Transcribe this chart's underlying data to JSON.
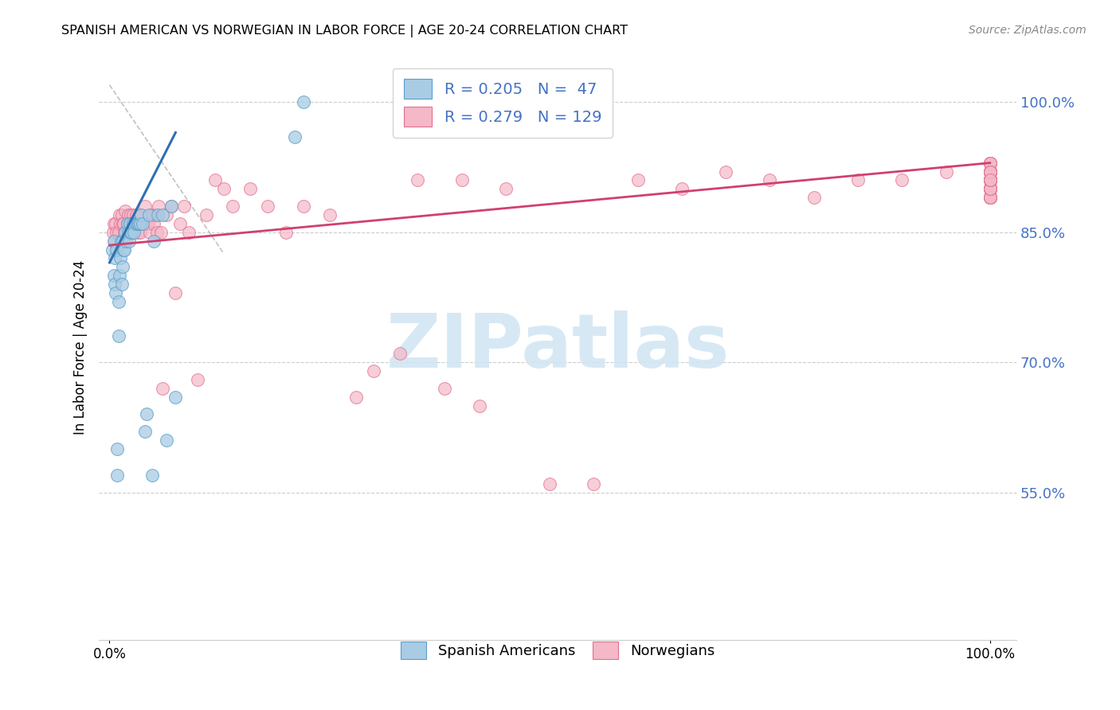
{
  "title": "SPANISH AMERICAN VS NORWEGIAN IN LABOR FORCE | AGE 20-24 CORRELATION CHART",
  "source": "Source: ZipAtlas.com",
  "ylabel": "In Labor Force | Age 20-24",
  "ytick_labels": [
    "100.0%",
    "85.0%",
    "70.0%",
    "55.0%"
  ],
  "ytick_values": [
    1.0,
    0.85,
    0.7,
    0.55
  ],
  "legend_r_blue": "R = 0.205",
  "legend_n_blue": "N =  47",
  "legend_r_pink": "R = 0.279",
  "legend_n_pink": "N = 129",
  "blue_color": "#a8cce4",
  "blue_edge_color": "#5b9ec9",
  "pink_color": "#f4b8c8",
  "pink_edge_color": "#e07090",
  "blue_line_color": "#3070b0",
  "pink_line_color": "#d04070",
  "blue_scatter_x": [
    0.003,
    0.005,
    0.005,
    0.006,
    0.006,
    0.007,
    0.008,
    0.009,
    0.009,
    0.01,
    0.01,
    0.011,
    0.012,
    0.013,
    0.014,
    0.015,
    0.015,
    0.016,
    0.017,
    0.018,
    0.019,
    0.02,
    0.021,
    0.022,
    0.023,
    0.024,
    0.025,
    0.027,
    0.028,
    0.03,
    0.032,
    0.033,
    0.035,
    0.036,
    0.038,
    0.04,
    0.042,
    0.045,
    0.048,
    0.05,
    0.055,
    0.06,
    0.065,
    0.07,
    0.075,
    0.21,
    0.22
  ],
  "blue_scatter_y": [
    0.83,
    0.84,
    0.8,
    0.82,
    0.79,
    0.78,
    0.83,
    0.6,
    0.57,
    0.77,
    0.73,
    0.8,
    0.82,
    0.84,
    0.79,
    0.81,
    0.84,
    0.83,
    0.83,
    0.85,
    0.84,
    0.86,
    0.85,
    0.84,
    0.86,
    0.85,
    0.85,
    0.86,
    0.85,
    0.86,
    0.86,
    0.86,
    0.86,
    0.87,
    0.86,
    0.62,
    0.64,
    0.87,
    0.57,
    0.84,
    0.87,
    0.87,
    0.61,
    0.88,
    0.66,
    0.96,
    1.0
  ],
  "pink_scatter_x": [
    0.004,
    0.005,
    0.006,
    0.007,
    0.008,
    0.009,
    0.01,
    0.011,
    0.012,
    0.013,
    0.014,
    0.015,
    0.016,
    0.017,
    0.018,
    0.019,
    0.02,
    0.021,
    0.022,
    0.023,
    0.024,
    0.025,
    0.026,
    0.027,
    0.028,
    0.03,
    0.032,
    0.034,
    0.035,
    0.036,
    0.038,
    0.04,
    0.042,
    0.044,
    0.046,
    0.048,
    0.05,
    0.052,
    0.054,
    0.056,
    0.058,
    0.06,
    0.065,
    0.07,
    0.075,
    0.08,
    0.085,
    0.09,
    0.1,
    0.11,
    0.12,
    0.13,
    0.14,
    0.16,
    0.18,
    0.2,
    0.22,
    0.25,
    0.28,
    0.3,
    0.33,
    0.35,
    0.38,
    0.4,
    0.42,
    0.45,
    0.5,
    0.55,
    0.6,
    0.65,
    0.7,
    0.75,
    0.8,
    0.85,
    0.9,
    0.95,
    1.0,
    1.0,
    1.0,
    1.0,
    1.0,
    1.0,
    1.0,
    1.0,
    1.0,
    1.0,
    1.0,
    1.0,
    1.0,
    1.0,
    1.0,
    1.0,
    1.0,
    1.0,
    1.0,
    1.0,
    1.0,
    1.0,
    1.0,
    1.0,
    1.0,
    1.0,
    1.0,
    1.0,
    1.0,
    1.0,
    1.0,
    1.0,
    1.0,
    1.0,
    1.0,
    1.0,
    1.0,
    1.0,
    1.0,
    1.0,
    1.0,
    1.0,
    1.0,
    1.0,
    1.0,
    1.0,
    1.0,
    1.0,
    1.0,
    1.0,
    1.0,
    1.0,
    1.0
  ],
  "pink_scatter_y": [
    0.85,
    0.86,
    0.84,
    0.86,
    0.85,
    0.83,
    0.85,
    0.87,
    0.86,
    0.84,
    0.87,
    0.86,
    0.86,
    0.85,
    0.875,
    0.84,
    0.86,
    0.87,
    0.86,
    0.85,
    0.87,
    0.86,
    0.85,
    0.87,
    0.86,
    0.87,
    0.85,
    0.86,
    0.85,
    0.87,
    0.86,
    0.88,
    0.86,
    0.86,
    0.85,
    0.87,
    0.86,
    0.87,
    0.85,
    0.88,
    0.85,
    0.67,
    0.87,
    0.88,
    0.78,
    0.86,
    0.88,
    0.85,
    0.68,
    0.87,
    0.91,
    0.9,
    0.88,
    0.9,
    0.88,
    0.85,
    0.88,
    0.87,
    0.66,
    0.69,
    0.71,
    0.91,
    0.67,
    0.91,
    0.65,
    0.9,
    0.56,
    0.56,
    0.91,
    0.9,
    0.92,
    0.91,
    0.89,
    0.91,
    0.91,
    0.92,
    0.91,
    0.9,
    0.92,
    0.91,
    0.89,
    0.91,
    0.9,
    0.92,
    0.91,
    0.89,
    0.9,
    0.91,
    0.92,
    0.91,
    0.9,
    0.92,
    0.91,
    0.89,
    0.93,
    0.91,
    0.9,
    0.92,
    0.91,
    0.92,
    0.93,
    0.91,
    0.9,
    0.92,
    0.91,
    0.89,
    0.93,
    0.91,
    0.9,
    0.92,
    0.91,
    0.92,
    0.89,
    0.9,
    0.92,
    0.91,
    0.9,
    0.89,
    0.91,
    0.92,
    0.9,
    0.91,
    0.93,
    0.91,
    0.9,
    0.92,
    0.91,
    0.92,
    0.91
  ],
  "blue_line_x": [
    0.0,
    0.075
  ],
  "blue_line_y": [
    0.815,
    0.965
  ],
  "pink_line_x": [
    0.0,
    1.0
  ],
  "pink_line_y": [
    0.835,
    0.93
  ],
  "ref_line_x": [
    0.0,
    0.13
  ],
  "ref_line_y": [
    1.02,
    0.825
  ],
  "xlim": [
    -0.012,
    1.03
  ],
  "ylim": [
    0.38,
    1.055
  ],
  "watermark_text": "ZIPatlas",
  "watermark_color": "#d0e4f4",
  "grid_color": "#cccccc"
}
